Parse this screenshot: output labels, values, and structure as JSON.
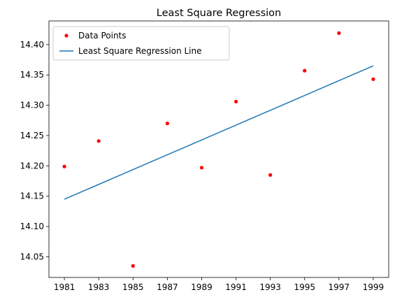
{
  "chart_data": {
    "type": "scatter",
    "title": "Least Square Regression",
    "xlabel": "",
    "ylabel": "",
    "xlim": [
      1980.1,
      1999.9
    ],
    "ylim": [
      14.016,
      14.439
    ],
    "x_ticks": [
      1981,
      1983,
      1985,
      1987,
      1989,
      1991,
      1993,
      1995,
      1997,
      1999
    ],
    "x_tick_labels": [
      "1981",
      "1983",
      "1985",
      "1987",
      "1989",
      "1991",
      "1993",
      "1995",
      "1997",
      "1999"
    ],
    "y_ticks": [
      14.05,
      14.1,
      14.15,
      14.2,
      14.25,
      14.3,
      14.35,
      14.4
    ],
    "y_tick_labels": [
      "14.05",
      "14.10",
      "14.15",
      "14.20",
      "14.25",
      "14.30",
      "14.35",
      "14.40"
    ],
    "grid": false,
    "legend_position": "top-left",
    "series": [
      {
        "name": "Data Points",
        "kind": "scatter",
        "color": "#ff0000",
        "x": [
          1981,
          1983,
          1985,
          1987,
          1989,
          1991,
          1993,
          1995,
          1997,
          1999
        ],
        "y": [
          14.199,
          14.241,
          14.035,
          14.27,
          14.197,
          14.306,
          14.185,
          14.357,
          14.419,
          14.343
        ]
      },
      {
        "name": "Least Square Regression Line",
        "kind": "line",
        "color": "#1f77b4",
        "x": [
          1981,
          1999
        ],
        "y": [
          14.145,
          14.365
        ]
      }
    ]
  }
}
